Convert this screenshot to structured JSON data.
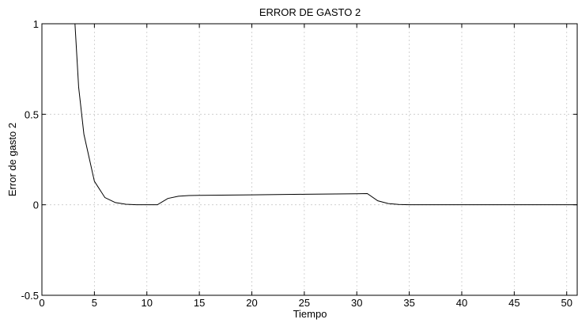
{
  "chart_data": {
    "type": "line",
    "title": "ERROR DE GASTO 2",
    "xlabel": "Tiempo",
    "ylabel": "Error de gasto 2",
    "xlim": [
      0,
      51
    ],
    "ylim": [
      -0.5,
      1
    ],
    "xticks": [
      0,
      5,
      10,
      15,
      20,
      25,
      30,
      35,
      40,
      45,
      50
    ],
    "yticks": [
      -0.5,
      0,
      0.5,
      1
    ],
    "ytick_labels": [
      "-0.5",
      "0",
      "0.5",
      "1"
    ],
    "grid": true,
    "series": [
      {
        "color": "#000000",
        "x": [
          3.1,
          3.5,
          4,
          5,
          6,
          7,
          8,
          9,
          10,
          11,
          12,
          13,
          14,
          15,
          20,
          25,
          30,
          31,
          32,
          33,
          34,
          35,
          36,
          40,
          45,
          51
        ],
        "y": [
          1.05,
          0.65,
          0.39,
          0.13,
          0.04,
          0.012,
          0.003,
          0.0,
          0.0,
          0.0,
          0.035,
          0.047,
          0.051,
          0.052,
          0.055,
          0.058,
          0.061,
          0.062,
          0.022,
          0.007,
          0.002,
          0.0,
          0.0,
          0.0,
          0.0,
          0.0
        ]
      }
    ]
  }
}
